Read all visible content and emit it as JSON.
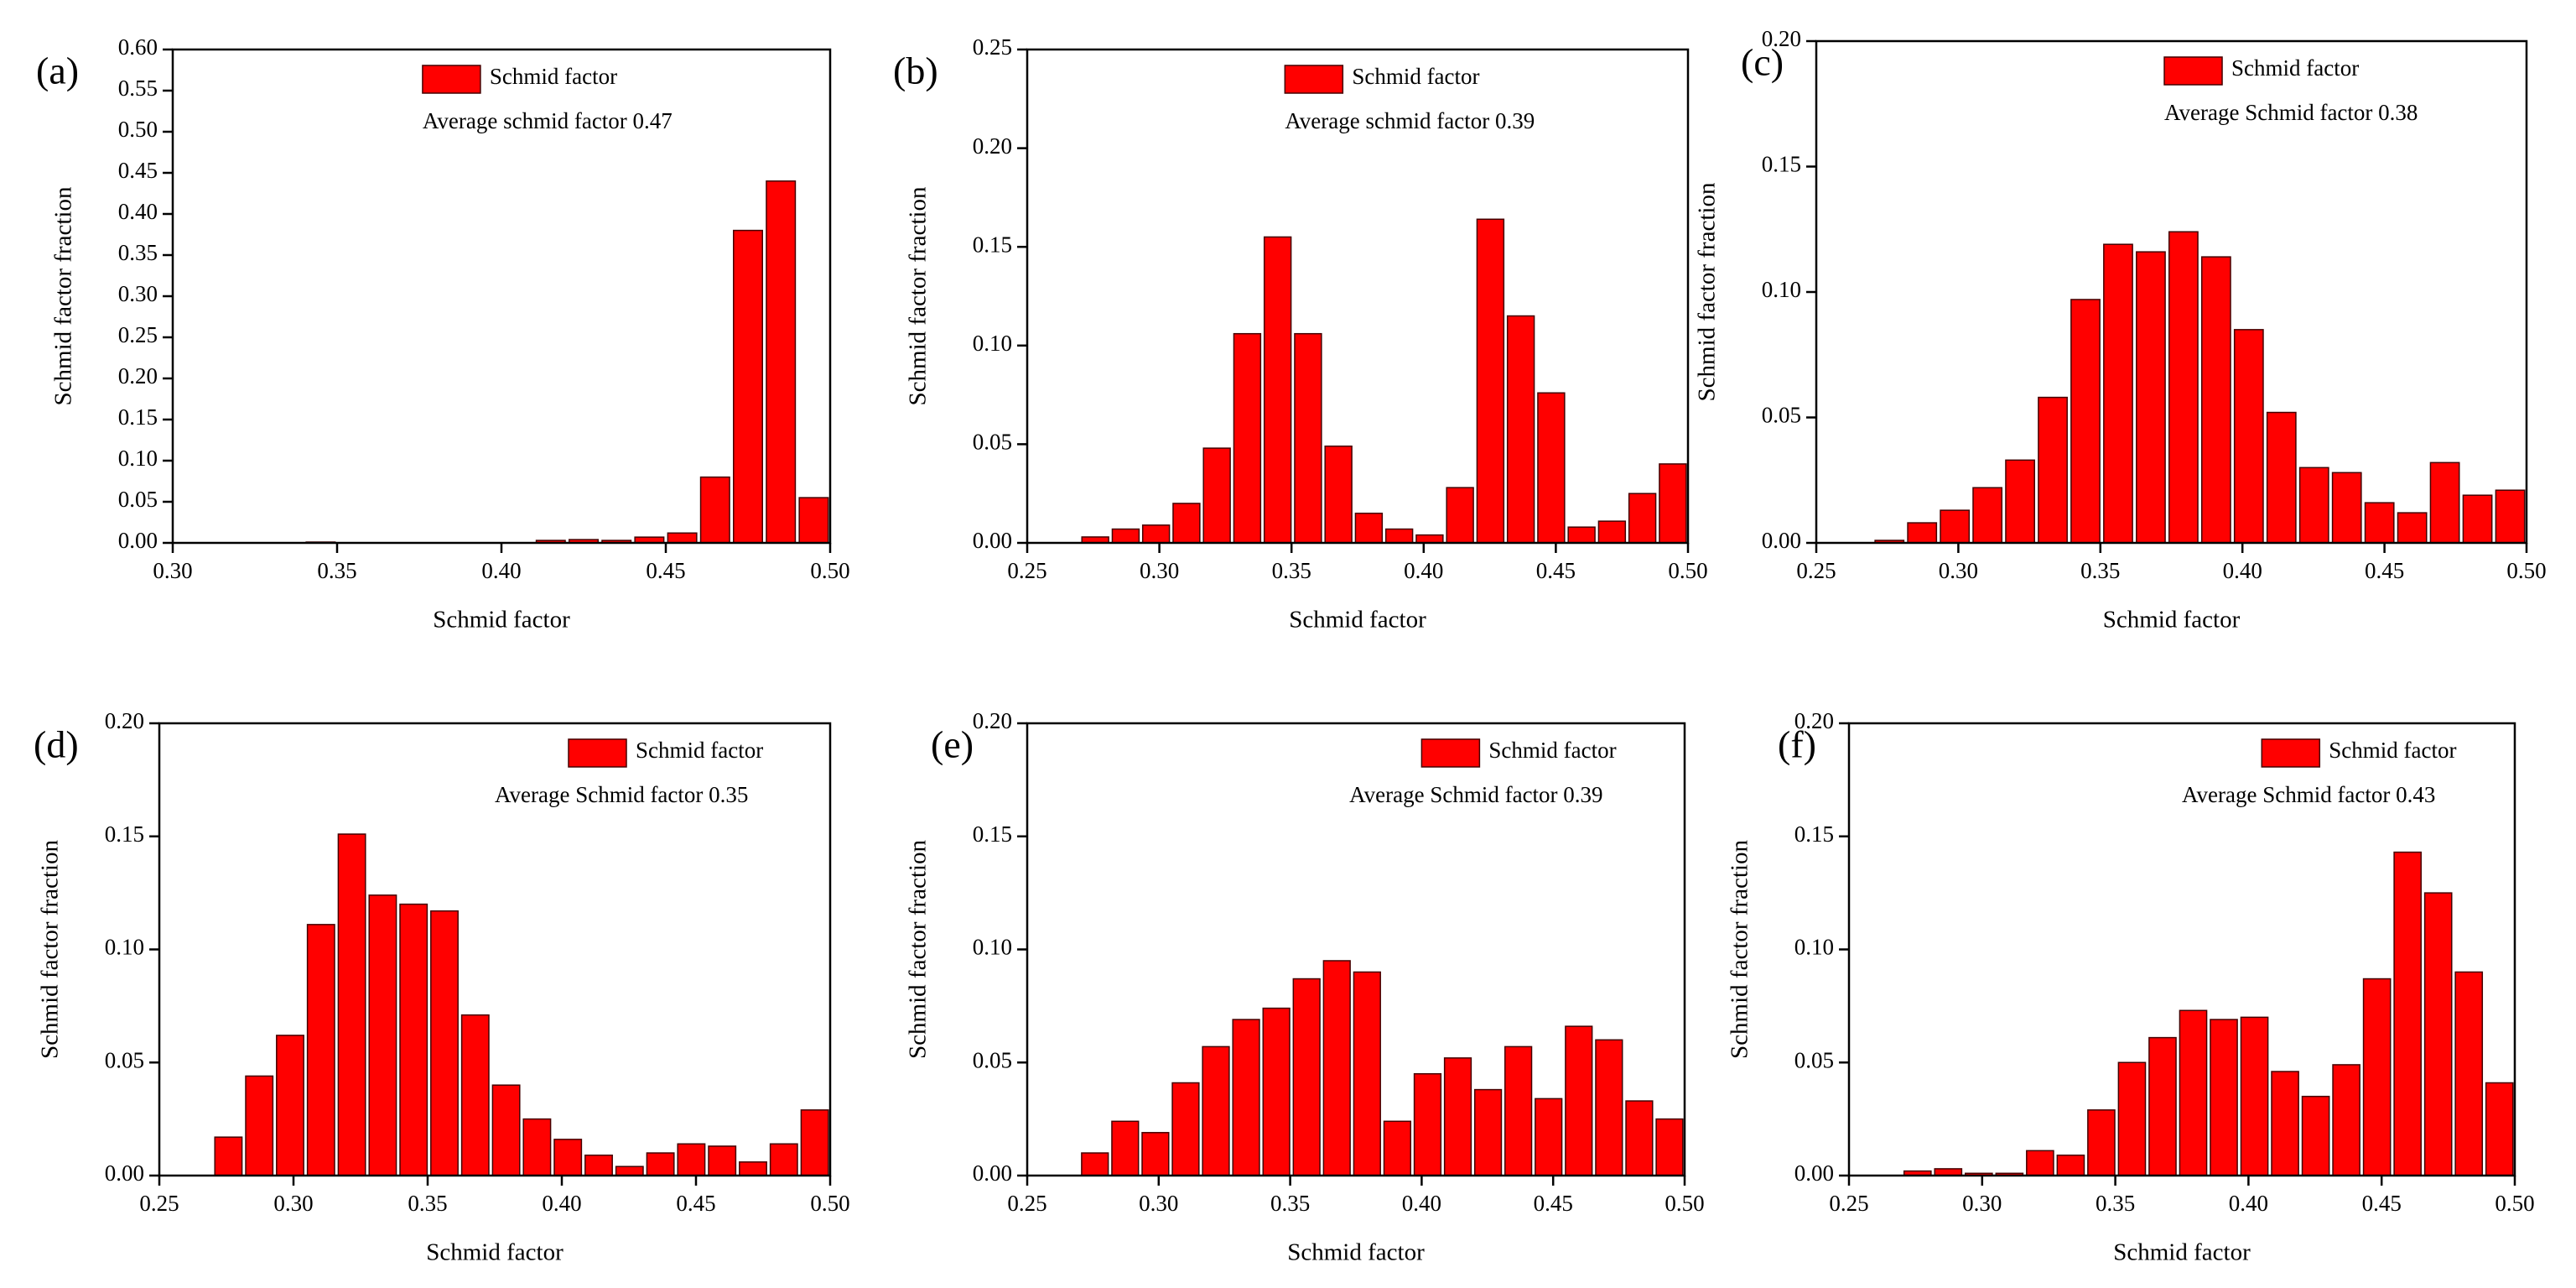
{
  "chart_data": [
    {
      "type": "histogram",
      "panel_label": "(a)",
      "annotation": "Average schmid factor 0.47",
      "xlabel": "Schmid factor",
      "ylabel": "Schmid factor fraction",
      "bins": [
        0.3,
        0.31,
        0.32,
        0.33,
        0.34,
        0.35,
        0.36,
        0.37,
        0.38,
        0.39,
        0.4,
        0.41,
        0.42,
        0.43,
        0.44,
        0.45,
        0.46,
        0.47,
        0.48,
        0.49,
        0.5
      ],
      "series": [
        {
          "name": "Schmid factor",
          "color": "#ff0000",
          "values": [
            0,
            0,
            0,
            0,
            0.001,
            0,
            0,
            0,
            0,
            0,
            0,
            0.003,
            0.004,
            0.003,
            0.007,
            0.012,
            0.08,
            0.38,
            0.44,
            0.055
          ]
        }
      ],
      "xlim": [
        0.3,
        0.5
      ],
      "xticks": [
        {
          "value": 0.3,
          "label": "0.30"
        },
        {
          "value": 0.35,
          "label": "0.35"
        },
        {
          "value": 0.4,
          "label": "0.40"
        },
        {
          "value": 0.45,
          "label": "0.45"
        },
        {
          "value": 0.5,
          "label": "0.50"
        }
      ],
      "ylim": [
        0,
        0.6
      ],
      "yticks": [
        {
          "value": 0,
          "label": "0.00"
        },
        {
          "value": 0.05,
          "label": "0.05"
        },
        {
          "value": 0.1,
          "label": "0.10"
        },
        {
          "value": 0.15,
          "label": "0.15"
        },
        {
          "value": 0.2,
          "label": "0.20"
        },
        {
          "value": 0.25,
          "label": "0.25"
        },
        {
          "value": 0.3,
          "label": "0.30"
        },
        {
          "value": 0.35,
          "label": "0.35"
        },
        {
          "value": 0.4,
          "label": "0.40"
        },
        {
          "value": 0.45,
          "label": "0.45"
        },
        {
          "value": 0.5,
          "label": "0.50"
        },
        {
          "value": 0.55,
          "label": "0.55"
        },
        {
          "value": 0.6,
          "label": "0.60"
        }
      ]
    },
    {
      "type": "histogram",
      "panel_label": "(b)",
      "annotation": "Average schmid factor 0.39",
      "xlabel": "Schmid factor",
      "ylabel": "Schmid factor fraction",
      "bins": [
        0.27,
        0.2815,
        0.293,
        0.3045,
        0.316,
        0.3275,
        0.339,
        0.3505,
        0.362,
        0.3735,
        0.385,
        0.3965,
        0.408,
        0.4195,
        0.431,
        0.4425,
        0.454,
        0.4655,
        0.477,
        0.4885,
        0.5
      ],
      "series": [
        {
          "name": "Schmid factor",
          "color": "#ff0000",
          "values": [
            0.003,
            0.007,
            0.009,
            0.02,
            0.048,
            0.106,
            0.155,
            0.106,
            0.049,
            0.015,
            0.007,
            0.004,
            0.028,
            0.164,
            0.115,
            0.076,
            0.008,
            0.011,
            0.025,
            0.04
          ]
        }
      ],
      "xlim": [
        0.25,
        0.5
      ],
      "xticks": [
        {
          "value": 0.25,
          "label": "0.25"
        },
        {
          "value": 0.3,
          "label": "0.30"
        },
        {
          "value": 0.35,
          "label": "0.35"
        },
        {
          "value": 0.4,
          "label": "0.40"
        },
        {
          "value": 0.45,
          "label": "0.45"
        },
        {
          "value": 0.5,
          "label": "0.50"
        }
      ],
      "ylim": [
        0,
        0.25
      ],
      "yticks": [
        {
          "value": 0,
          "label": "0.00"
        },
        {
          "value": 0.05,
          "label": "0.05"
        },
        {
          "value": 0.1,
          "label": "0.10"
        },
        {
          "value": 0.15,
          "label": "0.15"
        },
        {
          "value": 0.2,
          "label": "0.20"
        },
        {
          "value": 0.25,
          "label": "0.25"
        }
      ]
    },
    {
      "type": "histogram",
      "panel_label": "(c)",
      "annotation": "Average Schmid factor 0.38",
      "xlabel": "Schmid factor",
      "ylabel": "Schmid factor fraction",
      "bins": [
        0.27,
        0.2815,
        0.293,
        0.3045,
        0.316,
        0.3275,
        0.339,
        0.3505,
        0.362,
        0.3735,
        0.385,
        0.3965,
        0.408,
        0.4195,
        0.431,
        0.4425,
        0.454,
        0.4655,
        0.477,
        0.4885,
        0.5
      ],
      "series": [
        {
          "name": "Schmid factor",
          "color": "#ff0000",
          "values": [
            0.001,
            0.008,
            0.013,
            0.022,
            0.033,
            0.058,
            0.097,
            0.119,
            0.116,
            0.124,
            0.114,
            0.085,
            0.052,
            0.03,
            0.028,
            0.016,
            0.012,
            0.032,
            0.019,
            0.021
          ]
        }
      ],
      "xlim": [
        0.25,
        0.5
      ],
      "xticks": [
        {
          "value": 0.25,
          "label": "0.25"
        },
        {
          "value": 0.3,
          "label": "0.30"
        },
        {
          "value": 0.35,
          "label": "0.35"
        },
        {
          "value": 0.4,
          "label": "0.40"
        },
        {
          "value": 0.45,
          "label": "0.45"
        },
        {
          "value": 0.5,
          "label": "0.50"
        }
      ],
      "ylim": [
        0,
        0.2
      ],
      "yticks": [
        {
          "value": 0,
          "label": "0.00"
        },
        {
          "value": 0.05,
          "label": "0.05"
        },
        {
          "value": 0.1,
          "label": "0.10"
        },
        {
          "value": 0.15,
          "label": "0.15"
        },
        {
          "value": 0.2,
          "label": "0.20"
        }
      ]
    },
    {
      "type": "histogram",
      "panel_label": "(d)",
      "annotation": "Average Schmid factor 0.35",
      "xlabel": "Schmid factor",
      "ylabel": "Schmid factor fraction",
      "bins": [
        0.27,
        0.2815,
        0.293,
        0.3045,
        0.316,
        0.3275,
        0.339,
        0.3505,
        0.362,
        0.3735,
        0.385,
        0.3965,
        0.408,
        0.4195,
        0.431,
        0.4425,
        0.454,
        0.4655,
        0.477,
        0.4885,
        0.5
      ],
      "series": [
        {
          "name": "Schmid factor",
          "color": "#ff0000",
          "values": [
            0.017,
            0.044,
            0.062,
            0.111,
            0.151,
            0.124,
            0.12,
            0.117,
            0.071,
            0.04,
            0.025,
            0.016,
            0.009,
            0.004,
            0.01,
            0.014,
            0.013,
            0.006,
            0.014,
            0.029
          ]
        }
      ],
      "xlim": [
        0.25,
        0.5
      ],
      "xticks": [
        {
          "value": 0.25,
          "label": "0.25"
        },
        {
          "value": 0.3,
          "label": "0.30"
        },
        {
          "value": 0.35,
          "label": "0.35"
        },
        {
          "value": 0.4,
          "label": "0.40"
        },
        {
          "value": 0.45,
          "label": "0.45"
        },
        {
          "value": 0.5,
          "label": "0.50"
        }
      ],
      "ylim": [
        0,
        0.2
      ],
      "yticks": [
        {
          "value": 0,
          "label": "0.00"
        },
        {
          "value": 0.05,
          "label": "0.05"
        },
        {
          "value": 0.1,
          "label": "0.10"
        },
        {
          "value": 0.15,
          "label": "0.15"
        },
        {
          "value": 0.2,
          "label": "0.20"
        }
      ]
    },
    {
      "type": "histogram",
      "panel_label": "(e)",
      "annotation": "Average Schmid factor 0.39",
      "xlabel": "Schmid factor",
      "ylabel": "Schmid factor fraction",
      "bins": [
        0.27,
        0.2815,
        0.293,
        0.3045,
        0.316,
        0.3275,
        0.339,
        0.3505,
        0.362,
        0.3735,
        0.385,
        0.3965,
        0.408,
        0.4195,
        0.431,
        0.4425,
        0.454,
        0.4655,
        0.477,
        0.4885,
        0.5
      ],
      "series": [
        {
          "name": "Schmid factor",
          "color": "#ff0000",
          "values": [
            0.01,
            0.024,
            0.019,
            0.041,
            0.057,
            0.069,
            0.074,
            0.087,
            0.095,
            0.09,
            0.024,
            0.045,
            0.052,
            0.038,
            0.057,
            0.034,
            0.066,
            0.06,
            0.033,
            0.025
          ]
        }
      ],
      "xlim": [
        0.25,
        0.5
      ],
      "xticks": [
        {
          "value": 0.25,
          "label": "0.25"
        },
        {
          "value": 0.3,
          "label": "0.30"
        },
        {
          "value": 0.35,
          "label": "0.35"
        },
        {
          "value": 0.4,
          "label": "0.40"
        },
        {
          "value": 0.45,
          "label": "0.45"
        },
        {
          "value": 0.5,
          "label": "0.50"
        }
      ],
      "ylim": [
        0,
        0.2
      ],
      "yticks": [
        {
          "value": 0,
          "label": "0.00"
        },
        {
          "value": 0.05,
          "label": "0.05"
        },
        {
          "value": 0.1,
          "label": "0.10"
        },
        {
          "value": 0.15,
          "label": "0.15"
        },
        {
          "value": 0.2,
          "label": "0.20"
        }
      ]
    },
    {
      "type": "histogram",
      "panel_label": "(f)",
      "annotation": "Average Schmid factor 0.43",
      "xlabel": "Schmid factor",
      "ylabel": "Schmid factor fraction",
      "bins": [
        0.27,
        0.2815,
        0.293,
        0.3045,
        0.316,
        0.3275,
        0.339,
        0.3505,
        0.362,
        0.3735,
        0.385,
        0.3965,
        0.408,
        0.4195,
        0.431,
        0.4425,
        0.454,
        0.4655,
        0.477,
        0.4885,
        0.5
      ],
      "series": [
        {
          "name": "Schmid factor",
          "color": "#ff0000",
          "values": [
            0.002,
            0.003,
            0.001,
            0.001,
            0.011,
            0.009,
            0.029,
            0.05,
            0.061,
            0.073,
            0.069,
            0.07,
            0.046,
            0.035,
            0.049,
            0.087,
            0.143,
            0.125,
            0.09,
            0.041
          ]
        }
      ],
      "xlim": [
        0.25,
        0.5
      ],
      "xticks": [
        {
          "value": 0.25,
          "label": "0.25"
        },
        {
          "value": 0.3,
          "label": "0.30"
        },
        {
          "value": 0.35,
          "label": "0.35"
        },
        {
          "value": 0.4,
          "label": "0.40"
        },
        {
          "value": 0.45,
          "label": "0.45"
        },
        {
          "value": 0.5,
          "label": "0.50"
        }
      ],
      "ylim": [
        0,
        0.2
      ],
      "yticks": [
        {
          "value": 0,
          "label": "0.00"
        },
        {
          "value": 0.05,
          "label": "0.05"
        },
        {
          "value": 0.1,
          "label": "0.10"
        },
        {
          "value": 0.15,
          "label": "0.15"
        },
        {
          "value": 0.2,
          "label": "0.20"
        }
      ]
    }
  ]
}
